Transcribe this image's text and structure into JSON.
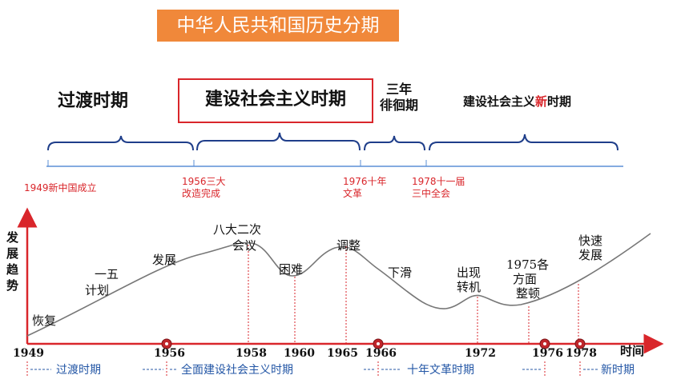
{
  "title": "中华人民共和国历史分期",
  "periods": {
    "p1": "过渡时期",
    "p2": "建设社会主义时期",
    "p3_line1": "三年",
    "p3_line2": "徘徊期",
    "p4_prefix": "建设社会主义",
    "p4_highlight": "新",
    "p4_suffix": "时期"
  },
  "events": {
    "e1": "1949新中国成立",
    "e2_line1": "1956三大",
    "e2_line2": "改造完成",
    "e3_line1": "1976十年",
    "e3_line2": "文革",
    "e4_line1": "1978十一届",
    "e4_line2": "三中全会"
  },
  "graph": {
    "y_axis_label": [
      "发",
      "展",
      "趋",
      "势"
    ],
    "x_axis_label": "时间",
    "years": [
      "1949",
      "1956",
      "1958",
      "1960",
      "1965",
      "1966",
      "1972",
      "1976",
      "1978"
    ],
    "labels": {
      "recover": "恢复",
      "plan_1": "一五",
      "plan_2": "计划",
      "develop": "发展",
      "congress_1": "八大二次",
      "congress_2": "会议",
      "difficulty": "困难",
      "adjust": "调整",
      "decline": "下滑",
      "turn_1": "出现",
      "turn_2": "转机",
      "rect_1": "1975各",
      "rect_2": "方面",
      "rect_3": "整顿",
      "fast_1": "快速",
      "fast_2": "发展"
    },
    "bands": [
      "过渡时期",
      "全面建设社会主义时期",
      "十年文革时期",
      "新时期"
    ]
  },
  "colors": {
    "accent": "#f0883a",
    "red": "#d9262b",
    "bracket": "#1f3e8a",
    "band_text": "#2457a6"
  }
}
